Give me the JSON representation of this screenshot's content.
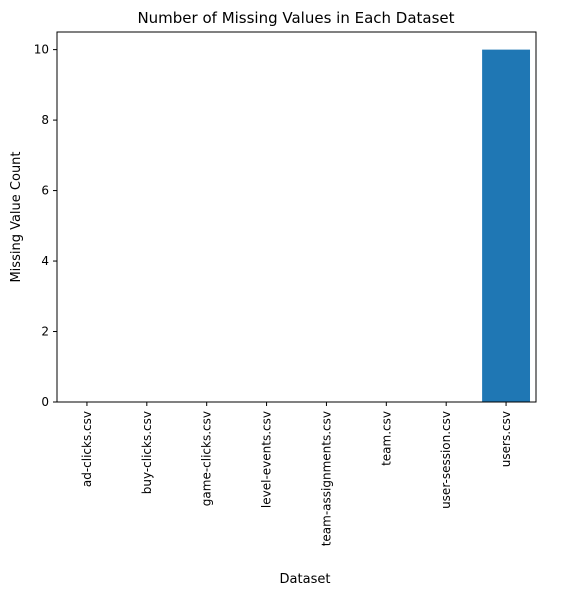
{
  "chart_data": {
    "type": "bar",
    "title": "Number of Missing Values in Each Dataset",
    "xlabel": "Dataset",
    "ylabel": "Missing Value Count",
    "categories": [
      "ad-clicks.csv",
      "buy-clicks.csv",
      "game-clicks.csv",
      "level-events.csv",
      "team-assignments.csv",
      "team.csv",
      "user-session.csv",
      "users.csv"
    ],
    "values": [
      0,
      0,
      0,
      0,
      0,
      0,
      0,
      10
    ],
    "yticks": [
      "0",
      "2",
      "4",
      "6",
      "8",
      "10"
    ],
    "ylim": [
      0,
      10.5
    ],
    "grid": false,
    "bar_color": "#1f77b4"
  }
}
